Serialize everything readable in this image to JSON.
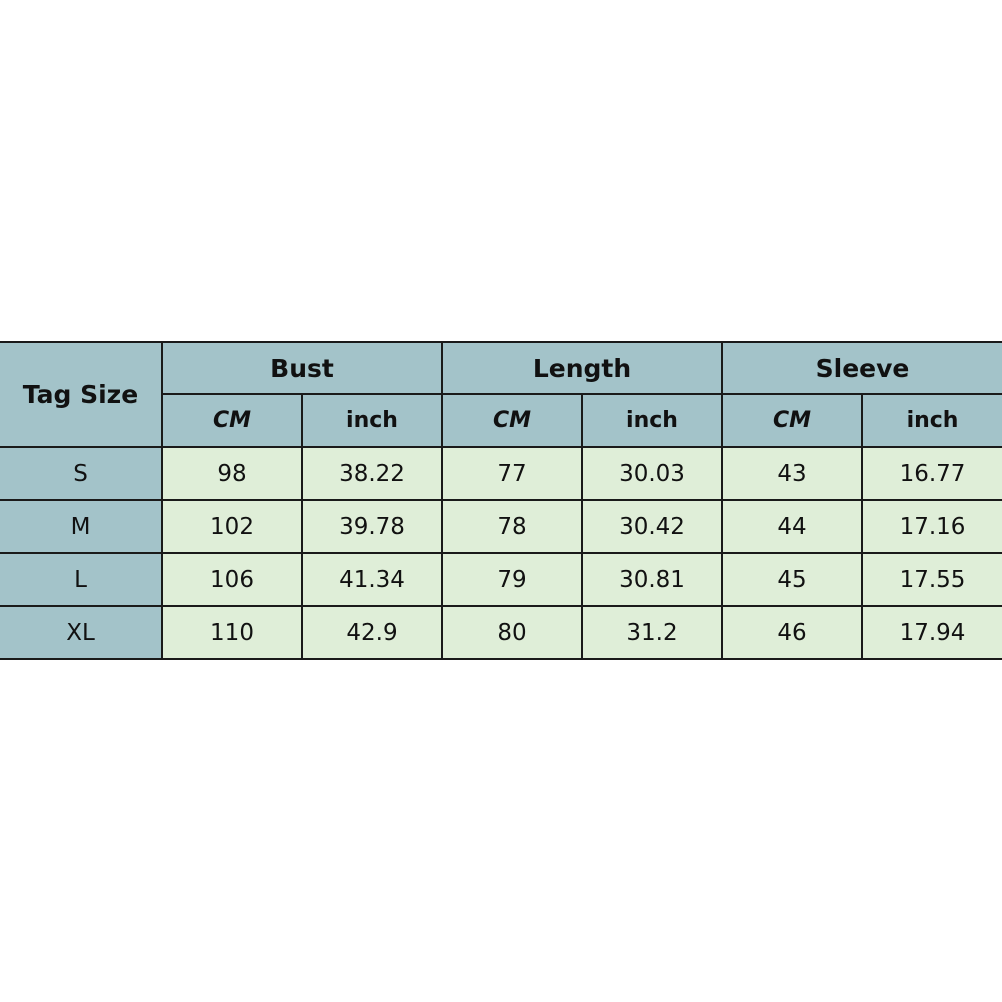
{
  "table": {
    "corner_header": "Tag Size",
    "groups": [
      "Bust",
      "Length",
      "Sleeve"
    ],
    "units": [
      "CM",
      "inch"
    ],
    "rows": [
      {
        "size": "S",
        "values": [
          "98",
          "38.22",
          "77",
          "30.03",
          "43",
          "16.77"
        ]
      },
      {
        "size": "M",
        "values": [
          "102",
          "39.78",
          "78",
          "30.42",
          "44",
          "17.16"
        ]
      },
      {
        "size": "L",
        "values": [
          "106",
          "41.34",
          "79",
          "30.81",
          "45",
          "17.55"
        ]
      },
      {
        "size": "XL",
        "values": [
          "110",
          "42.9",
          "80",
          "31.2",
          "46",
          "17.94"
        ]
      }
    ],
    "colors": {
      "header": "#a3c3c9",
      "cell": "#dfeed8",
      "border": "#1a1a1a"
    }
  }
}
